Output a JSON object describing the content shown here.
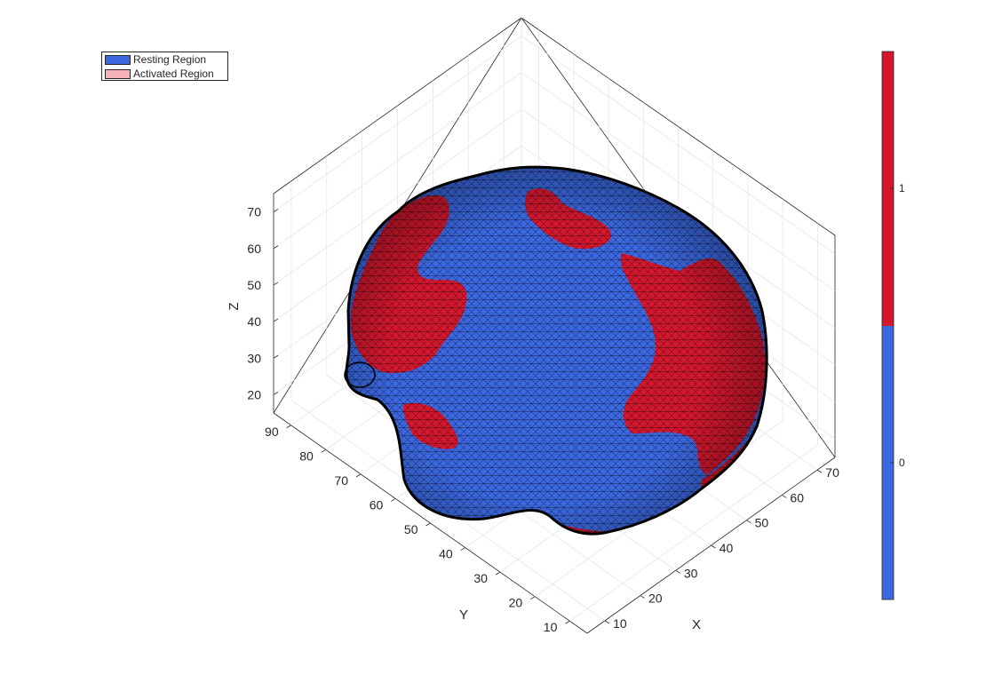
{
  "legend": {
    "items": [
      {
        "label": "Resting Region",
        "color": "#3b68e0"
      },
      {
        "label": "Activated Region",
        "color": "#f5b3b9"
      }
    ]
  },
  "colors": {
    "resting": "#3b68e0",
    "activated": "#d4172e",
    "mesh_edge": "#000000",
    "grid": "#e3e3e3",
    "axis": "#262626"
  },
  "chart_data": {
    "type": "3d-surface",
    "title": "",
    "xlabel": "X",
    "ylabel": "Y",
    "zlabel": "Z",
    "x_ticks": [
      "10",
      "20",
      "30",
      "40",
      "50",
      "60",
      "70"
    ],
    "y_ticks": [
      "10",
      "20",
      "30",
      "40",
      "50",
      "60",
      "70",
      "80",
      "90"
    ],
    "z_ticks": [
      "20",
      "30",
      "40",
      "50",
      "60",
      "70"
    ],
    "xlim": [
      5,
      75
    ],
    "ylim": [
      5,
      95
    ],
    "zlim": [
      15,
      75
    ],
    "grid": true,
    "view": "3d-isometric",
    "surface": "triangulated cortical mesh, binary activation values",
    "colorbar": {
      "ticks": [
        "0",
        "1"
      ],
      "colormap": [
        "#3b68e0",
        "#d4172e"
      ],
      "limits": [
        -0.5,
        1.5
      ]
    },
    "series": [
      {
        "name": "Resting Region",
        "value": 0
      },
      {
        "name": "Activated Region",
        "value": 1
      }
    ]
  }
}
